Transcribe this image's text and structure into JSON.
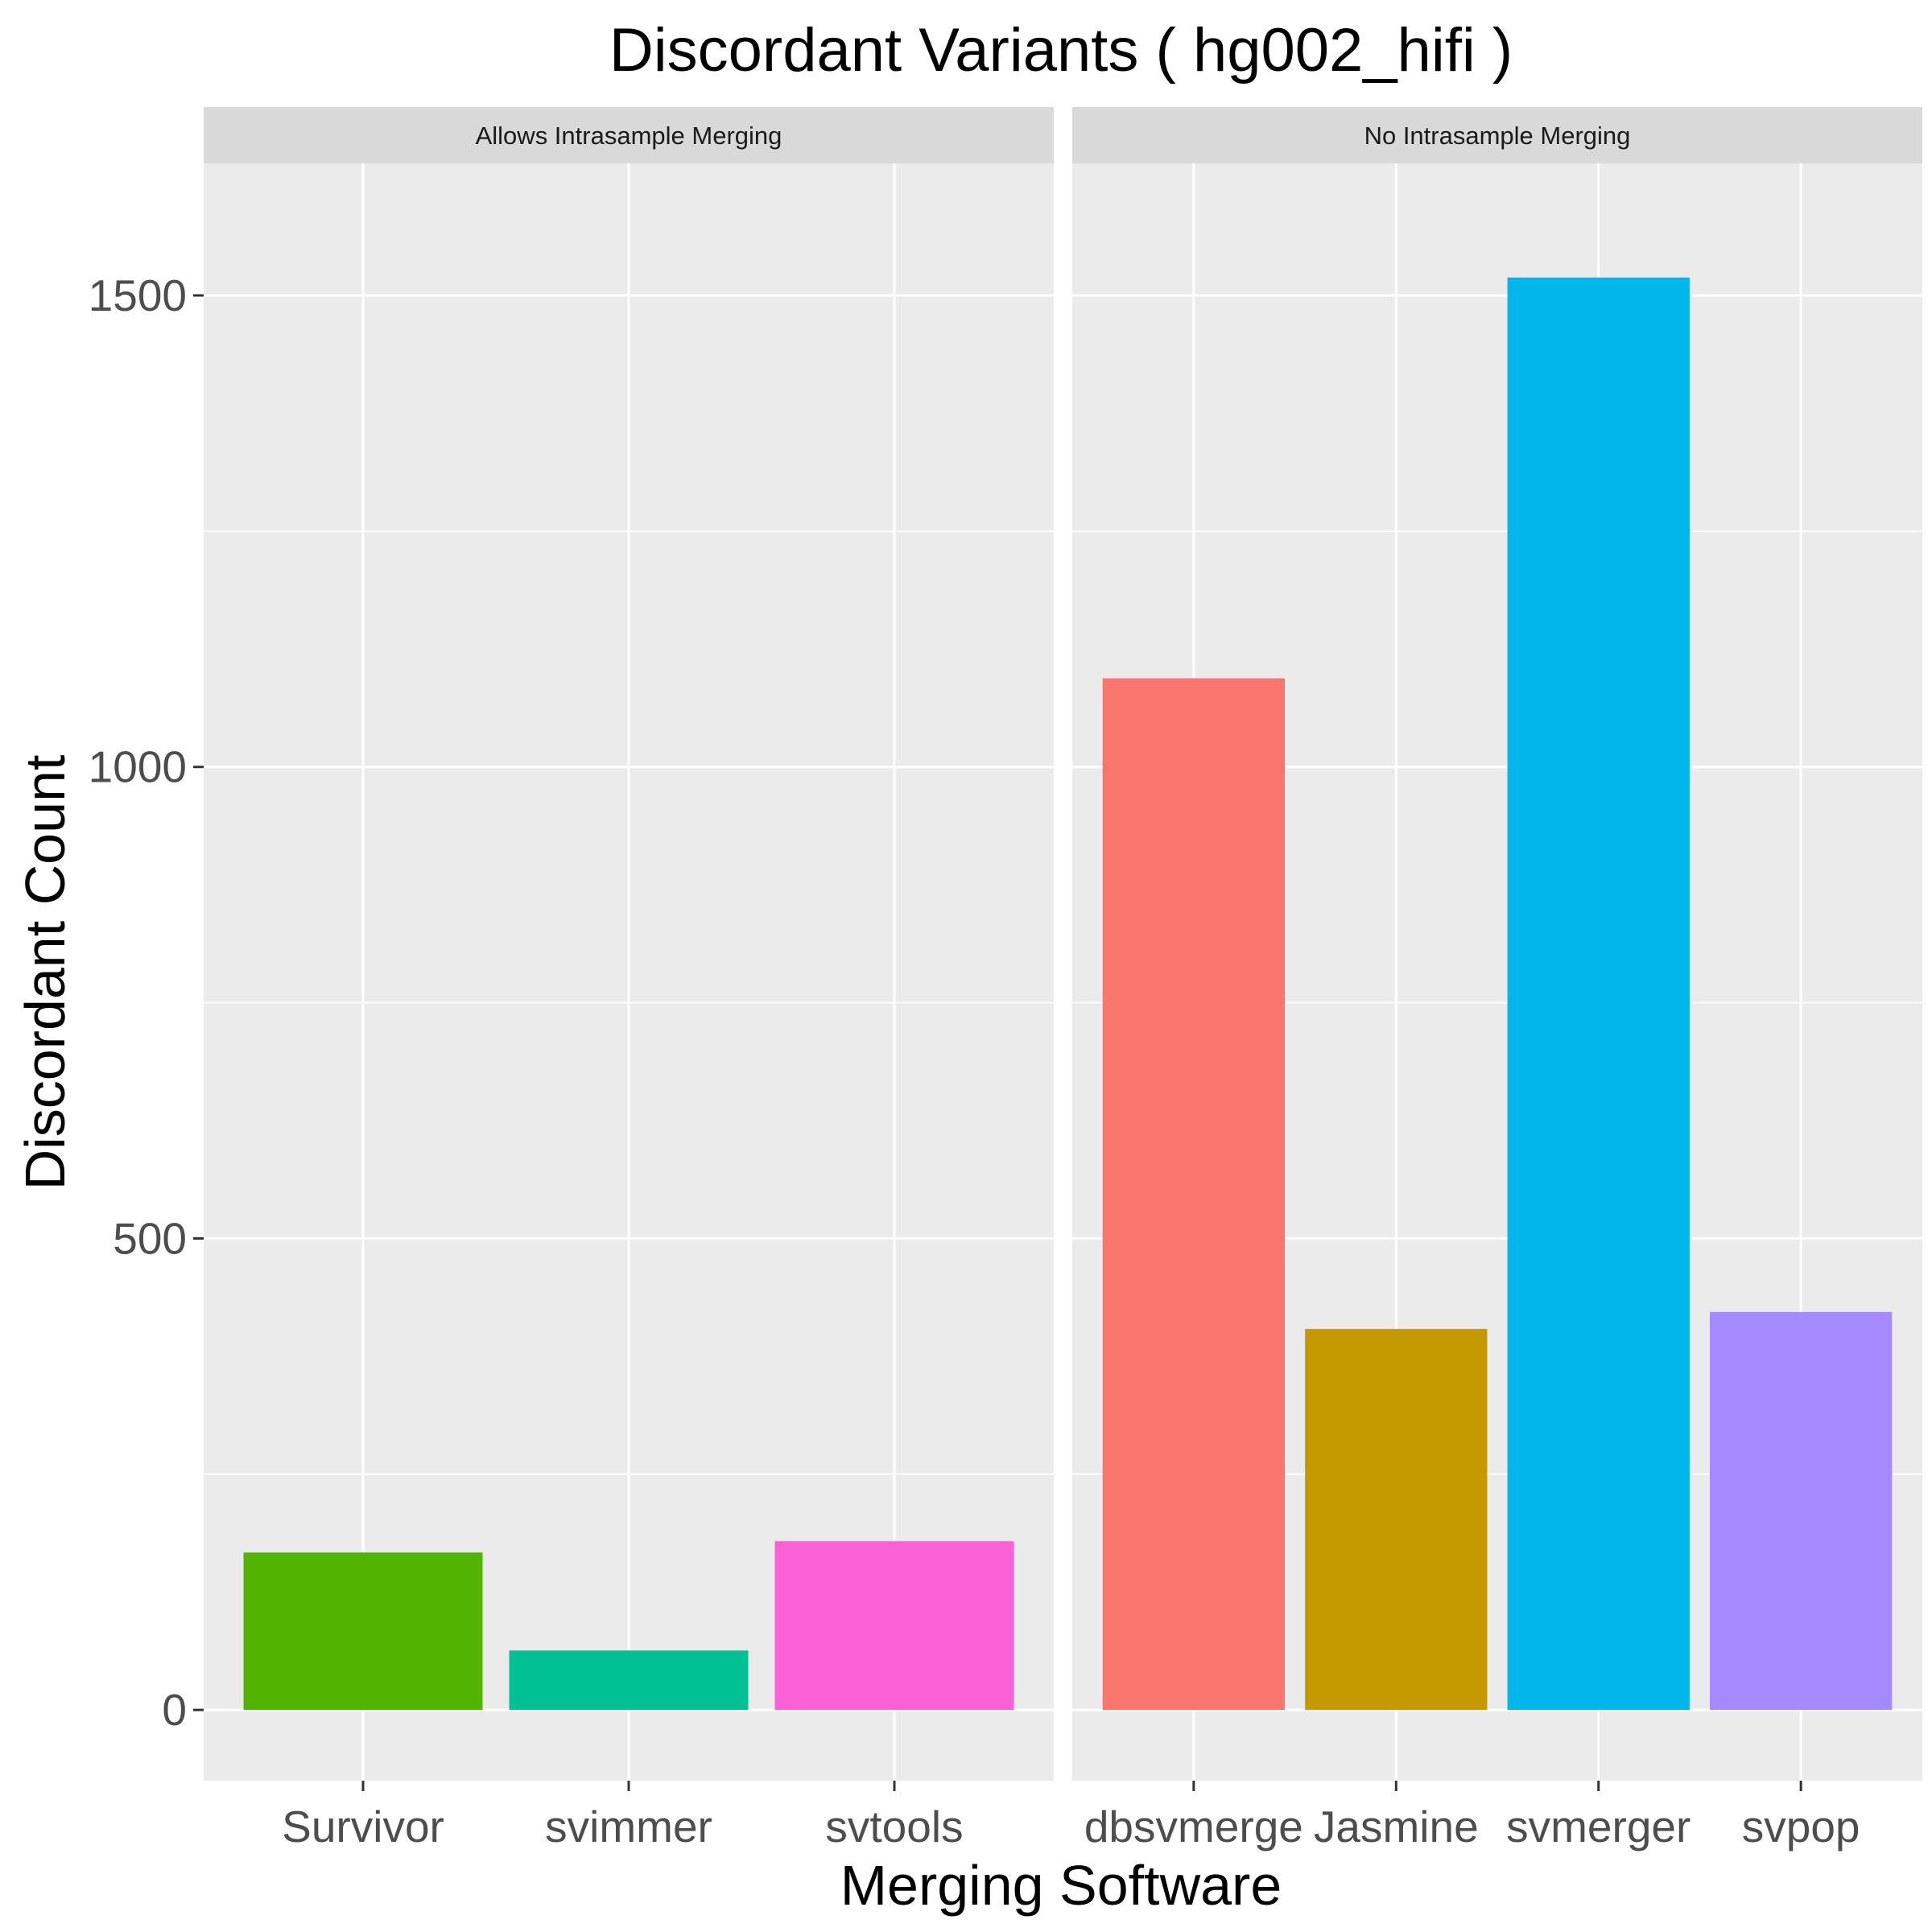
{
  "chart_data": {
    "type": "bar",
    "title": "Discordant Variants ( hg002_hifi )",
    "xlabel": "Merging Software",
    "ylabel": "Discordant Count",
    "ylim": [
      -75,
      1640
    ],
    "yticks": [
      0,
      500,
      1000,
      1500
    ],
    "grid": true,
    "legend": "none",
    "panels": [
      {
        "label": "Allows Intrasample Merging",
        "categories": [
          "Survivor",
          "svimmer",
          "svtools"
        ],
        "values": [
          167,
          63,
          179
        ],
        "colors": [
          "#53B400",
          "#00C094",
          "#FB61D7"
        ]
      },
      {
        "label": "No Intrasample Merging",
        "categories": [
          "dbsvmerge",
          "Jasmine",
          "svmerger",
          "svpop"
        ],
        "values": [
          1094,
          404,
          1519,
          422
        ],
        "colors": [
          "#F8766D",
          "#C49A00",
          "#00B6EB",
          "#A58AFF"
        ]
      }
    ]
  }
}
